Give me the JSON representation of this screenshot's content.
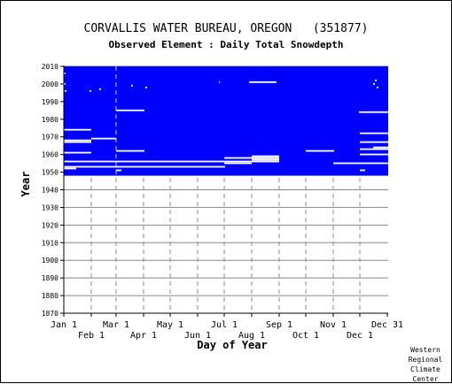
{
  "header": {
    "station_name": "CORVALLIS WATER BUREAU, OREGON",
    "station_id": "(351877)",
    "element_label": "Observed Element : Daily Total Snowdepth"
  },
  "credit": [
    "Western",
    "Regional",
    "Climate",
    "Center"
  ],
  "colors": {
    "data_fill": "#0000ff",
    "missing": "#ffffff",
    "grid": "#888888",
    "axis": "#000000"
  },
  "chart_data": {
    "type": "heatmap",
    "title": "Observed Element : Daily Total Snowdepth",
    "xlabel": "Day of Year",
    "ylabel": "Year",
    "xlim": [
      1,
      366
    ],
    "ylim": [
      1870,
      2010
    ],
    "x_ticks_upper": [
      {
        "label": "Jan 1",
        "day": 1
      },
      {
        "label": "Mar 1",
        "day": 60
      },
      {
        "label": "May 1",
        "day": 121
      },
      {
        "label": "Jul 1",
        "day": 182
      },
      {
        "label": "Sep 1",
        "day": 244
      },
      {
        "label": "Nov 1",
        "day": 305
      },
      {
        "label": "Dec 31",
        "day": 366
      }
    ],
    "x_ticks_lower": [
      {
        "label": "Feb 1",
        "day": 32
      },
      {
        "label": "Apr 1",
        "day": 91
      },
      {
        "label": "Jun 1",
        "day": 152
      },
      {
        "label": "Aug 1",
        "day": 213
      },
      {
        "label": "Oct 1",
        "day": 274
      },
      {
        "label": "Dec 1",
        "day": 335
      }
    ],
    "y_ticks": [
      1870,
      1880,
      1890,
      1900,
      1910,
      1920,
      1930,
      1940,
      1950,
      1960,
      1970,
      1980,
      1990,
      2000,
      2010
    ],
    "grid": true,
    "legend": "none",
    "coverage": {
      "start_year": 1948,
      "end_year": 2010,
      "status": "observed"
    },
    "missing_segments": [
      {
        "year": 2006,
        "start_day": 1,
        "end_day": 2
      },
      {
        "year": 2002,
        "start_day": 352,
        "end_day": 353
      },
      {
        "year": 2001,
        "start_day": 176,
        "end_day": 176
      },
      {
        "year": 2001,
        "start_day": 210,
        "end_day": 240
      },
      {
        "year": 2000,
        "start_day": 1,
        "end_day": 2
      },
      {
        "year": 2000,
        "start_day": 350,
        "end_day": 351
      },
      {
        "year": 1999,
        "start_day": 77,
        "end_day": 78
      },
      {
        "year": 1998,
        "start_day": 93,
        "end_day": 94
      },
      {
        "year": 1998,
        "start_day": 354,
        "end_day": 355
      },
      {
        "year": 1997,
        "start_day": 41,
        "end_day": 42
      },
      {
        "year": 1996,
        "start_day": 2,
        "end_day": 3
      },
      {
        "year": 1996,
        "start_day": 30,
        "end_day": 31
      },
      {
        "year": 1985,
        "start_day": 60,
        "end_day": 91
      },
      {
        "year": 1984,
        "start_day": 334,
        "end_day": 366
      },
      {
        "year": 1974,
        "start_day": 1,
        "end_day": 31
      },
      {
        "year": 1972,
        "start_day": 335,
        "end_day": 366
      },
      {
        "year": 1969,
        "start_day": 32,
        "end_day": 59
      },
      {
        "year": 1968,
        "start_day": 1,
        "end_day": 31
      },
      {
        "year": 1967,
        "start_day": 1,
        "end_day": 31
      },
      {
        "year": 1967,
        "start_day": 335,
        "end_day": 366
      },
      {
        "year": 1964,
        "start_day": 350,
        "end_day": 366
      },
      {
        "year": 1963,
        "start_day": 335,
        "end_day": 366
      },
      {
        "year": 1962,
        "start_day": 60,
        "end_day": 91
      },
      {
        "year": 1962,
        "start_day": 274,
        "end_day": 305
      },
      {
        "year": 1961,
        "start_day": 1,
        "end_day": 31
      },
      {
        "year": 1960,
        "start_day": 335,
        "end_day": 366
      },
      {
        "year": 1959,
        "start_day": 213,
        "end_day": 243
      },
      {
        "year": 1958,
        "start_day": 182,
        "end_day": 243
      },
      {
        "year": 1957,
        "start_day": 213,
        "end_day": 243
      },
      {
        "year": 1956,
        "start_day": 1,
        "end_day": 243
      },
      {
        "year": 1955,
        "start_day": 182,
        "end_day": 212
      },
      {
        "year": 1955,
        "start_day": 305,
        "end_day": 366
      },
      {
        "year": 1953,
        "start_day": 1,
        "end_day": 182
      },
      {
        "year": 1952,
        "start_day": 1,
        "end_day": 14
      },
      {
        "year": 1951,
        "start_day": 60,
        "end_day": 65
      },
      {
        "year": 1951,
        "start_day": 335,
        "end_day": 340
      }
    ]
  }
}
